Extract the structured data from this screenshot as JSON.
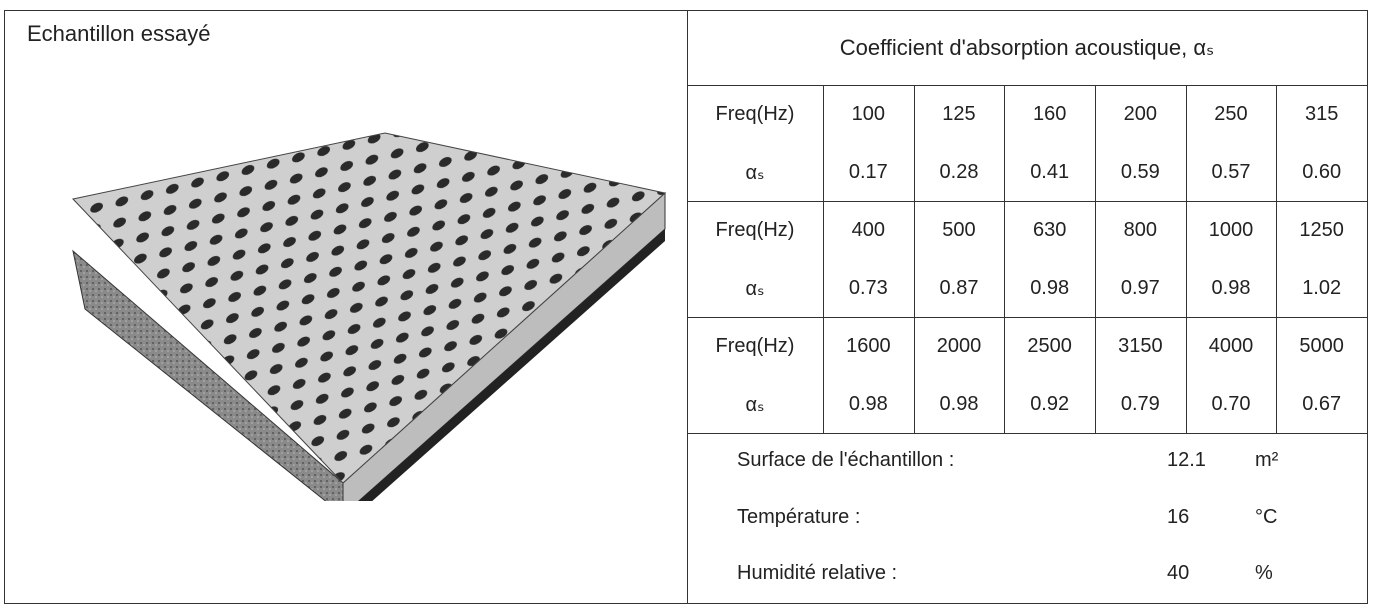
{
  "sample": {
    "title": "Echantillon essayé"
  },
  "table": {
    "title": "Coefficient d'absorption acoustique, αₛ",
    "groups": [
      {
        "freq_label": "Freq(Hz)",
        "alpha_label": "αₛ",
        "freqs": [
          "100",
          "125",
          "160",
          "200",
          "250",
          "315"
        ],
        "alphas": [
          "0.17",
          "0.28",
          "0.41",
          "0.59",
          "0.57",
          "0.60"
        ]
      },
      {
        "freq_label": "Freq(Hz)",
        "alpha_label": "αₛ",
        "freqs": [
          "400",
          "500",
          "630",
          "800",
          "1000",
          "1250"
        ],
        "alphas": [
          "0.73",
          "0.87",
          "0.98",
          "0.97",
          "0.98",
          "1.02"
        ]
      },
      {
        "freq_label": "Freq(Hz)",
        "alpha_label": "αₛ",
        "freqs": [
          "1600",
          "2000",
          "2500",
          "3150",
          "4000",
          "5000"
        ],
        "alphas": [
          "0.98",
          "0.98",
          "0.92",
          "0.79",
          "0.70",
          "0.67"
        ]
      }
    ]
  },
  "conditions": [
    {
      "label": "Surface de l'échantillon :",
      "value": "12.1",
      "unit": "m²"
    },
    {
      "label": "Température :",
      "value": "16",
      "unit": "°C"
    },
    {
      "label": "Humidité relative :",
      "value": "40",
      "unit": "%"
    }
  ]
}
